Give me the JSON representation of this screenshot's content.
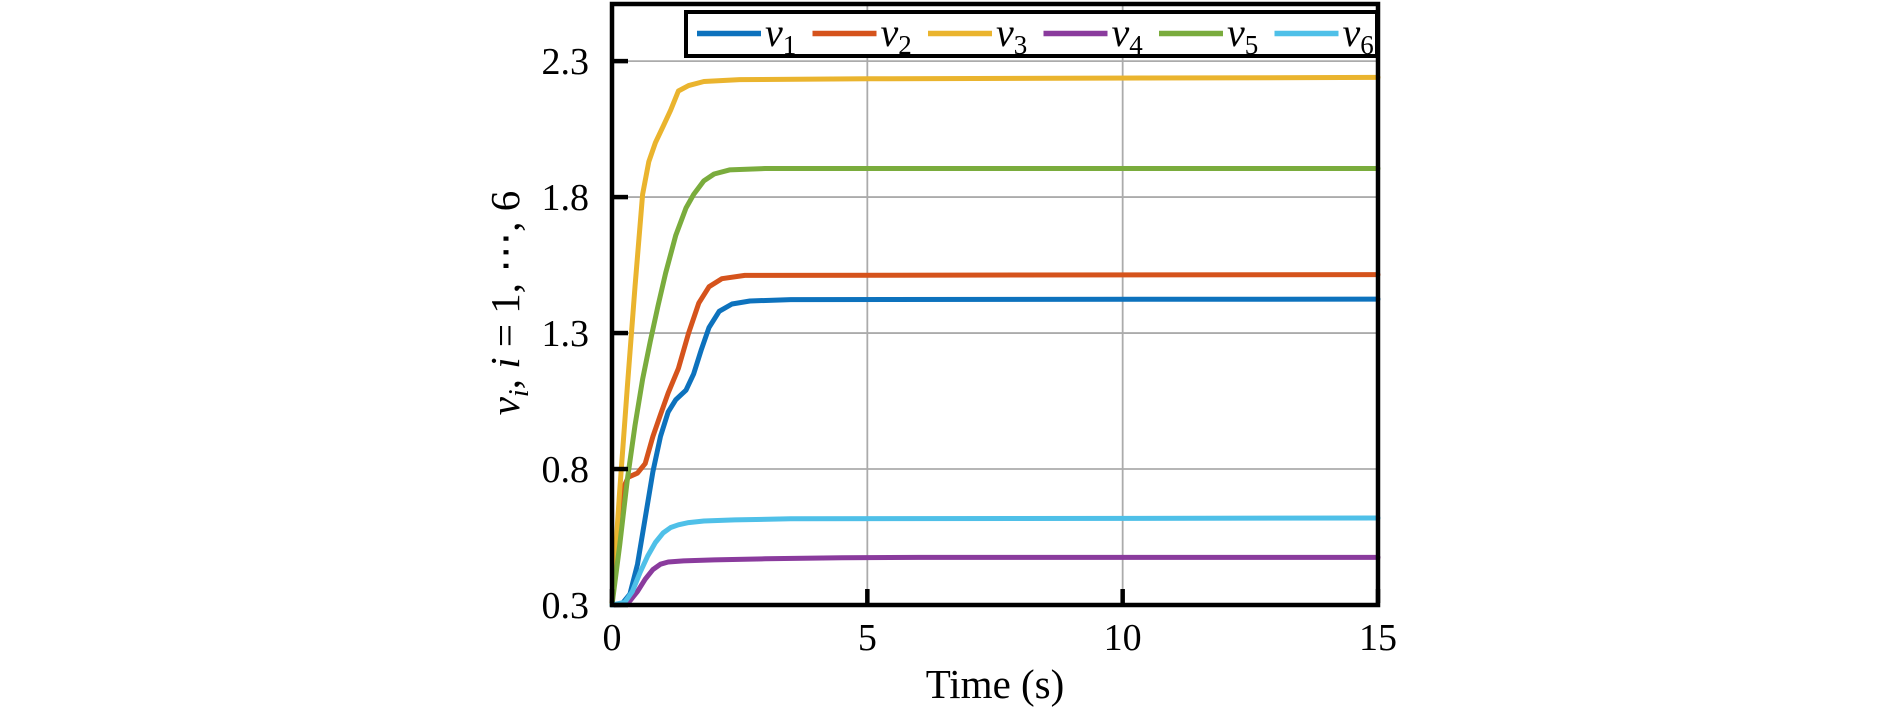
{
  "chart_data": {
    "type": "line",
    "title": "",
    "xlabel": "Time (s)",
    "ylabel": "v_i, i = 1, ⋯, 6",
    "ylabel_parts": {
      "base": "v",
      "base_sub": "i",
      "mid": ", ",
      "var": "i",
      "tail": " = 1, ⋯, 6"
    },
    "xlim": [
      0,
      15
    ],
    "ylim": [
      0.3,
      2.51
    ],
    "x_ticks": [
      0,
      5,
      10,
      15
    ],
    "x_tick_labels": [
      "0",
      "5",
      "10",
      "15"
    ],
    "y_ticks": [
      0.3,
      0.8,
      1.3,
      1.8,
      2.3
    ],
    "y_tick_labels": [
      "0.3",
      "0.8",
      "1.3",
      "1.8",
      "2.3"
    ],
    "grid": true,
    "grid_color": "#ababab",
    "axis_color": "#000000",
    "background_color": "#ffffff",
    "legend_position": "top-inside",
    "series": [
      {
        "name": "v1",
        "label_base": "v",
        "label_sub": "1",
        "color": "#0d72bd",
        "steady_state": 1.42,
        "points": [
          [
            0,
            0.3
          ],
          [
            0.2,
            0.305
          ],
          [
            0.35,
            0.34
          ],
          [
            0.5,
            0.45
          ],
          [
            0.65,
            0.62
          ],
          [
            0.8,
            0.79
          ],
          [
            0.95,
            0.92
          ],
          [
            1.1,
            1.01
          ],
          [
            1.25,
            1.055
          ],
          [
            1.45,
            1.09
          ],
          [
            1.6,
            1.15
          ],
          [
            1.75,
            1.24
          ],
          [
            1.9,
            1.32
          ],
          [
            2.1,
            1.38
          ],
          [
            2.35,
            1.407
          ],
          [
            2.7,
            1.418
          ],
          [
            3.5,
            1.423
          ],
          [
            15,
            1.425
          ]
        ]
      },
      {
        "name": "v2",
        "label_base": "v",
        "label_sub": "2",
        "color": "#d5531c",
        "steady_state": 1.52,
        "points": [
          [
            0,
            0.3
          ],
          [
            0.1,
            0.52
          ],
          [
            0.22,
            0.73
          ],
          [
            0.32,
            0.77
          ],
          [
            0.5,
            0.785
          ],
          [
            0.65,
            0.82
          ],
          [
            0.8,
            0.92
          ],
          [
            0.95,
            1.0
          ],
          [
            1.1,
            1.08
          ],
          [
            1.3,
            1.17
          ],
          [
            1.5,
            1.3
          ],
          [
            1.7,
            1.41
          ],
          [
            1.9,
            1.47
          ],
          [
            2.15,
            1.5
          ],
          [
            2.6,
            1.512
          ],
          [
            15,
            1.515
          ]
        ]
      },
      {
        "name": "v3",
        "label_base": "v",
        "label_sub": "3",
        "color": "#eab42e",
        "steady_state": 2.24,
        "points": [
          [
            0,
            0.3
          ],
          [
            0.15,
            0.72
          ],
          [
            0.3,
            1.1
          ],
          [
            0.45,
            1.47
          ],
          [
            0.6,
            1.81
          ],
          [
            0.72,
            1.93
          ],
          [
            0.85,
            2.0
          ],
          [
            1.0,
            2.06
          ],
          [
            1.15,
            2.12
          ],
          [
            1.3,
            2.19
          ],
          [
            1.5,
            2.21
          ],
          [
            1.8,
            2.225
          ],
          [
            2.5,
            2.232
          ],
          [
            5,
            2.235
          ],
          [
            15,
            2.24
          ]
        ]
      },
      {
        "name": "v4",
        "label_base": "v",
        "label_sub": "4",
        "color": "#8a3b9d",
        "steady_state": 0.475,
        "points": [
          [
            0,
            0.3
          ],
          [
            0.2,
            0.302
          ],
          [
            0.35,
            0.315
          ],
          [
            0.5,
            0.35
          ],
          [
            0.65,
            0.395
          ],
          [
            0.8,
            0.43
          ],
          [
            0.95,
            0.45
          ],
          [
            1.1,
            0.458
          ],
          [
            1.4,
            0.462
          ],
          [
            2,
            0.466
          ],
          [
            3,
            0.47
          ],
          [
            4.5,
            0.474
          ],
          [
            6,
            0.475
          ],
          [
            15,
            0.475
          ]
        ]
      },
      {
        "name": "v5",
        "label_base": "v",
        "label_sub": "5",
        "color": "#7aac3d",
        "steady_state": 1.905,
        "points": [
          [
            0,
            0.3
          ],
          [
            0.15,
            0.52
          ],
          [
            0.3,
            0.76
          ],
          [
            0.45,
            0.96
          ],
          [
            0.6,
            1.13
          ],
          [
            0.75,
            1.27
          ],
          [
            0.9,
            1.4
          ],
          [
            1.05,
            1.52
          ],
          [
            1.25,
            1.66
          ],
          [
            1.45,
            1.76
          ],
          [
            1.6,
            1.81
          ],
          [
            1.8,
            1.86
          ],
          [
            2.0,
            1.885
          ],
          [
            2.3,
            1.9
          ],
          [
            3.0,
            1.905
          ],
          [
            15,
            1.905
          ]
        ]
      },
      {
        "name": "v6",
        "label_base": "v",
        "label_sub": "6",
        "color": "#4fc0e8",
        "steady_state": 0.62,
        "points": [
          [
            0,
            0.3
          ],
          [
            0.25,
            0.31
          ],
          [
            0.4,
            0.35
          ],
          [
            0.55,
            0.42
          ],
          [
            0.7,
            0.48
          ],
          [
            0.85,
            0.53
          ],
          [
            1.0,
            0.565
          ],
          [
            1.15,
            0.585
          ],
          [
            1.3,
            0.595
          ],
          [
            1.5,
            0.603
          ],
          [
            1.8,
            0.609
          ],
          [
            2.4,
            0.613
          ],
          [
            3.5,
            0.617
          ],
          [
            15,
            0.62
          ]
        ]
      }
    ]
  }
}
